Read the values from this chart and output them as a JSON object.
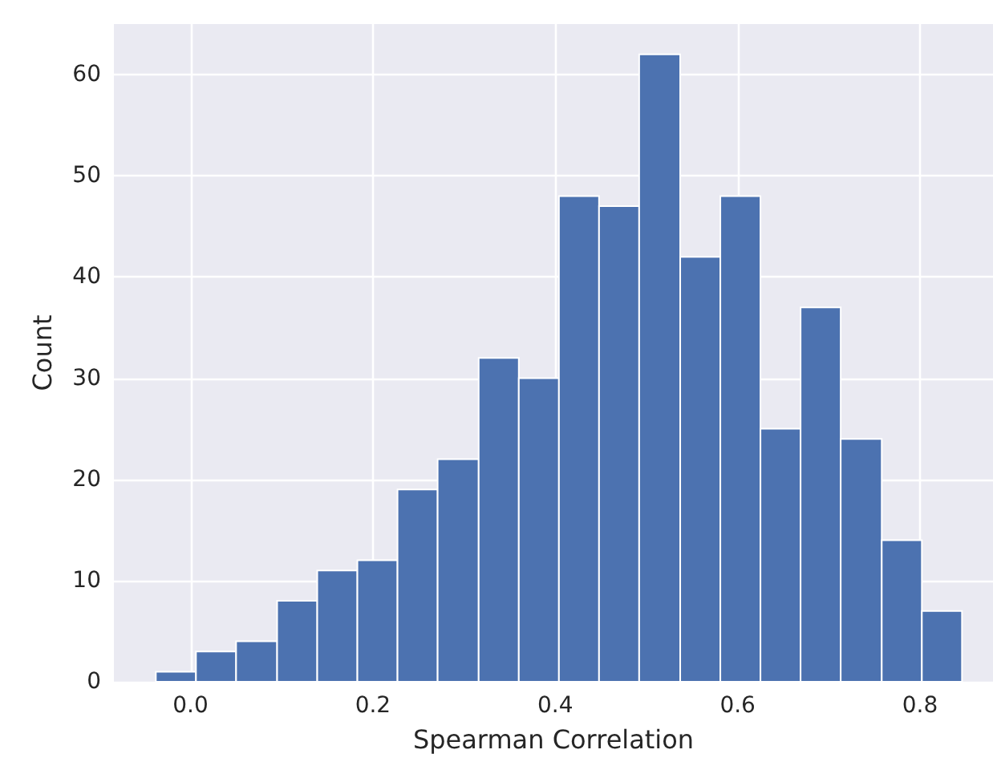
{
  "chart_data": {
    "type": "histogram",
    "xlabel": "Spearman Correlation",
    "ylabel": "Count",
    "bins": [
      -0.038,
      0.006,
      0.05,
      0.095,
      0.139,
      0.183,
      0.227,
      0.271,
      0.316,
      0.36,
      0.404,
      0.448,
      0.492,
      0.537,
      0.581,
      0.625,
      0.669,
      0.713,
      0.758,
      0.802,
      0.846
    ],
    "values": [
      1,
      3,
      4,
      8,
      11,
      12,
      19,
      22,
      32,
      30,
      48,
      47,
      62,
      42,
      48,
      25,
      37,
      24,
      14,
      7
    ],
    "color": "#4c72b0",
    "xlim": [
      -0.084,
      0.88
    ],
    "xticks": [
      {
        "value": 0,
        "label": "0.0"
      },
      0.2,
      0.4,
      0.6,
      0.8
    ],
    "ylim": [
      0,
      65
    ],
    "yticks": [
      0,
      10,
      20,
      30,
      40,
      50,
      60
    ],
    "grid": true
  }
}
